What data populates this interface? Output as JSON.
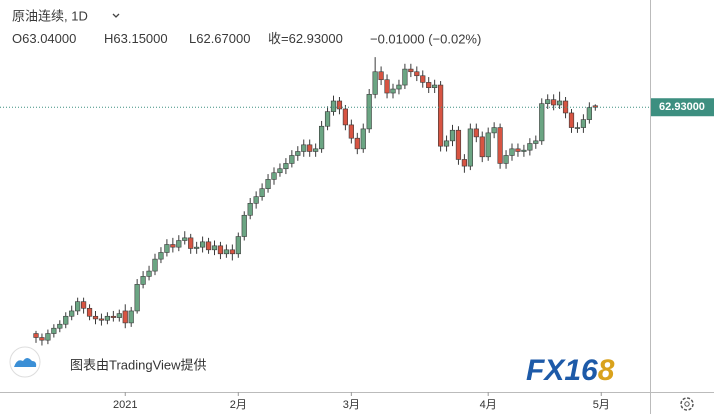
{
  "chart_data": {
    "type": "candlestick",
    "header": {
      "symbol": "原油连续, 1D",
      "open_label": "O",
      "open": "63.04000",
      "high_label": "H",
      "high": "63.15000",
      "low_label": "L",
      "low": "62.67000",
      "close_label": "收=",
      "close": "62.93000",
      "change": "−0.01000 (−0.02%)"
    },
    "watermark": "图表由TradingView提供",
    "logo": "FX16",
    "logo_accent": "8",
    "up_color": "#6ba583",
    "down_color": "#d75442",
    "price_line": {
      "value": 62.93,
      "label": "62.93000"
    },
    "price_line_color": "#3d8f80",
    "ylim": [
      41.5,
      71
    ],
    "xticks": [
      {
        "value": 15,
        "label": "2021"
      },
      {
        "value": 34,
        "label": "2月"
      },
      {
        "value": 53,
        "label": "3月"
      },
      {
        "value": 76,
        "label": "4月"
      },
      {
        "value": 95,
        "label": "5月"
      }
    ],
    "categories": [
      null,
      null,
      null,
      null,
      null,
      null,
      null,
      null,
      null,
      null,
      null,
      null,
      null,
      null,
      null,
      null,
      null,
      null,
      null,
      null,
      null,
      null,
      null,
      null,
      null,
      null,
      null,
      null,
      null,
      null,
      null,
      null,
      null,
      null,
      null,
      null,
      null,
      null,
      null,
      null,
      null,
      null,
      null,
      null,
      null,
      null,
      null,
      null,
      null,
      null,
      null,
      null,
      null,
      null,
      null,
      null,
      null,
      null,
      null,
      null,
      null,
      null,
      null,
      null,
      null,
      null,
      null,
      null,
      null,
      null,
      null,
      null,
      null,
      null,
      null,
      null,
      null,
      null,
      null,
      null,
      null,
      null,
      null,
      null,
      null,
      null,
      null,
      null,
      null,
      null,
      null,
      null,
      null,
      null,
      null
    ],
    "candles": [
      [
        45.9,
        46.1,
        45.2,
        45.6
      ],
      [
        45.6,
        45.9,
        45.0,
        45.4
      ],
      [
        45.4,
        46.2,
        45.1,
        45.9
      ],
      [
        45.9,
        46.6,
        45.6,
        46.3
      ],
      [
        46.3,
        46.9,
        46.0,
        46.6
      ],
      [
        46.6,
        47.5,
        46.3,
        47.2
      ],
      [
        47.2,
        48.0,
        46.9,
        47.6
      ],
      [
        47.6,
        48.6,
        47.3,
        48.3
      ],
      [
        48.3,
        48.6,
        47.4,
        47.8
      ],
      [
        47.8,
        48.1,
        46.9,
        47.2
      ],
      [
        47.2,
        47.6,
        46.6,
        47.0
      ],
      [
        47.0,
        47.4,
        46.5,
        46.9
      ],
      [
        46.9,
        47.5,
        46.6,
        47.2
      ],
      [
        47.2,
        47.6,
        46.8,
        47.1
      ],
      [
        47.1,
        47.7,
        46.8,
        47.4
      ],
      [
        47.6,
        48.1,
        46.3,
        46.7
      ],
      [
        46.7,
        47.9,
        46.4,
        47.6
      ],
      [
        47.6,
        50.0,
        47.4,
        49.6
      ],
      [
        49.6,
        50.6,
        49.3,
        50.2
      ],
      [
        50.2,
        51.0,
        49.9,
        50.6
      ],
      [
        50.6,
        51.9,
        50.3,
        51.5
      ],
      [
        51.5,
        52.4,
        51.2,
        52.0
      ],
      [
        52.0,
        53.0,
        51.7,
        52.6
      ],
      [
        52.6,
        53.1,
        52.0,
        52.4
      ],
      [
        52.4,
        53.3,
        52.1,
        52.9
      ],
      [
        52.9,
        53.6,
        52.6,
        53.1
      ],
      [
        53.1,
        53.4,
        51.9,
        52.3
      ],
      [
        52.3,
        52.8,
        51.9,
        52.4
      ],
      [
        52.4,
        53.2,
        52.0,
        52.8
      ],
      [
        52.8,
        53.1,
        51.9,
        52.2
      ],
      [
        52.2,
        52.9,
        51.8,
        52.5
      ],
      [
        52.5,
        52.8,
        51.5,
        51.9
      ],
      [
        51.9,
        52.6,
        51.6,
        52.2
      ],
      [
        52.2,
        52.6,
        51.4,
        51.9
      ],
      [
        51.9,
        53.5,
        51.6,
        53.2
      ],
      [
        53.2,
        55.1,
        52.9,
        54.8
      ],
      [
        54.8,
        56.1,
        54.5,
        55.7
      ],
      [
        55.7,
        56.6,
        55.3,
        56.2
      ],
      [
        56.2,
        57.2,
        55.9,
        56.8
      ],
      [
        56.8,
        57.9,
        56.5,
        57.5
      ],
      [
        57.5,
        58.4,
        57.1,
        58.0
      ],
      [
        58.0,
        58.7,
        57.7,
        58.3
      ],
      [
        58.3,
        59.1,
        57.9,
        58.7
      ],
      [
        58.7,
        59.7,
        58.4,
        59.3
      ],
      [
        59.3,
        60.0,
        58.9,
        59.6
      ],
      [
        59.6,
        60.5,
        59.2,
        60.1
      ],
      [
        60.1,
        60.5,
        59.2,
        59.6
      ],
      [
        59.6,
        60.2,
        59.2,
        59.8
      ],
      [
        59.8,
        61.9,
        59.5,
        61.5
      ],
      [
        61.5,
        63.0,
        61.2,
        62.6
      ],
      [
        62.6,
        63.8,
        62.3,
        63.4
      ],
      [
        63.4,
        63.7,
        62.4,
        62.8
      ],
      [
        62.8,
        63.1,
        61.2,
        61.6
      ],
      [
        61.6,
        62.0,
        60.2,
        60.6
      ],
      [
        60.6,
        61.0,
        59.4,
        59.8
      ],
      [
        59.8,
        61.7,
        59.5,
        61.3
      ],
      [
        61.3,
        64.3,
        61.0,
        63.9
      ],
      [
        63.9,
        66.7,
        63.6,
        65.6
      ],
      [
        65.6,
        66.0,
        64.6,
        65.0
      ],
      [
        65.0,
        65.4,
        63.6,
        64.0
      ],
      [
        64.0,
        64.7,
        63.6,
        64.3
      ],
      [
        64.3,
        65.0,
        63.9,
        64.6
      ],
      [
        64.6,
        66.2,
        64.3,
        65.8
      ],
      [
        65.8,
        66.2,
        65.2,
        65.6
      ],
      [
        65.6,
        66.0,
        64.9,
        65.3
      ],
      [
        65.3,
        65.7,
        64.4,
        64.8
      ],
      [
        64.8,
        65.2,
        64.0,
        64.4
      ],
      [
        64.4,
        65.0,
        64.0,
        64.6
      ],
      [
        64.6,
        64.9,
        59.6,
        60.0
      ],
      [
        60.0,
        60.8,
        59.6,
        60.4
      ],
      [
        60.4,
        61.6,
        60.0,
        61.2
      ],
      [
        61.2,
        61.5,
        58.6,
        59.0
      ],
      [
        59.0,
        59.4,
        58.0,
        58.5
      ],
      [
        58.5,
        61.7,
        58.2,
        61.3
      ],
      [
        61.3,
        61.7,
        60.3,
        60.7
      ],
      [
        60.7,
        61.1,
        58.8,
        59.2
      ],
      [
        59.2,
        61.4,
        58.9,
        61.0
      ],
      [
        61.0,
        61.8,
        60.6,
        61.4
      ],
      [
        61.4,
        61.7,
        58.3,
        58.7
      ],
      [
        58.7,
        59.7,
        58.3,
        59.3
      ],
      [
        59.3,
        60.2,
        58.9,
        59.8
      ],
      [
        59.8,
        60.2,
        59.2,
        59.6
      ],
      [
        59.6,
        60.1,
        59.2,
        59.7
      ],
      [
        59.7,
        60.6,
        59.3,
        60.2
      ],
      [
        60.2,
        60.8,
        59.8,
        60.4
      ],
      [
        60.4,
        63.6,
        60.1,
        63.2
      ],
      [
        63.2,
        63.9,
        62.8,
        63.5
      ],
      [
        63.5,
        63.9,
        62.7,
        63.1
      ],
      [
        63.1,
        64.1,
        62.8,
        63.4
      ],
      [
        63.4,
        63.7,
        62.1,
        62.5
      ],
      [
        62.5,
        62.8,
        61.0,
        61.4
      ],
      [
        61.4,
        61.8,
        61.0,
        61.4
      ],
      [
        61.4,
        62.4,
        61.0,
        62.0
      ],
      [
        62.0,
        63.3,
        61.7,
        62.9
      ],
      [
        63.04,
        63.15,
        62.67,
        62.93
      ]
    ]
  }
}
